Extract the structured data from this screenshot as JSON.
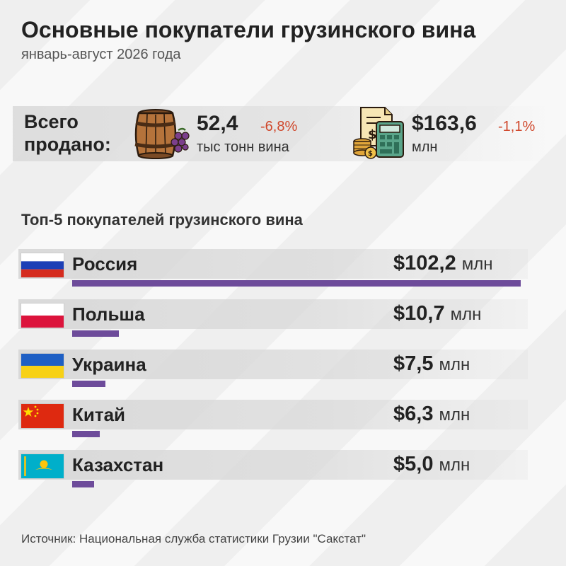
{
  "header": {
    "title": "Основные покупатели грузинского вина",
    "subtitle": "январь-август 2026 года"
  },
  "totals": {
    "label_line1": "Всего",
    "label_line2": "продано:",
    "volume": {
      "value": "52,4",
      "change": "-6,8%",
      "unit": "тыс тонн вина",
      "icon": "wine-barrel-icon"
    },
    "revenue": {
      "value": "$163,6",
      "change": "-1,1%",
      "unit": "млн",
      "icon": "calculator-money-icon"
    }
  },
  "chart_data": {
    "type": "bar",
    "orientation": "horizontal",
    "title": "Топ-5 покупателей грузинского вина",
    "categories": [
      "Россия",
      "Польша",
      "Украина",
      "Китай",
      "Казахстан"
    ],
    "values": [
      102.2,
      10.7,
      7.5,
      6.3,
      5.0
    ],
    "value_labels": [
      "$102,2",
      "$10,7",
      "$7,5",
      "$6,3",
      "$5,0"
    ],
    "unit": "млн",
    "bar_color": "#6d4b9a",
    "flags": [
      "russia-flag-icon",
      "poland-flag-icon",
      "ukraine-flag-icon",
      "china-flag-icon",
      "kazakhstan-flag-icon"
    ]
  },
  "colors": {
    "accent": "#6d4b9a",
    "negative": "#d0482c"
  },
  "footer": {
    "source": "Источник: Национальная служба статистики Грузии \"Сакстат\""
  }
}
